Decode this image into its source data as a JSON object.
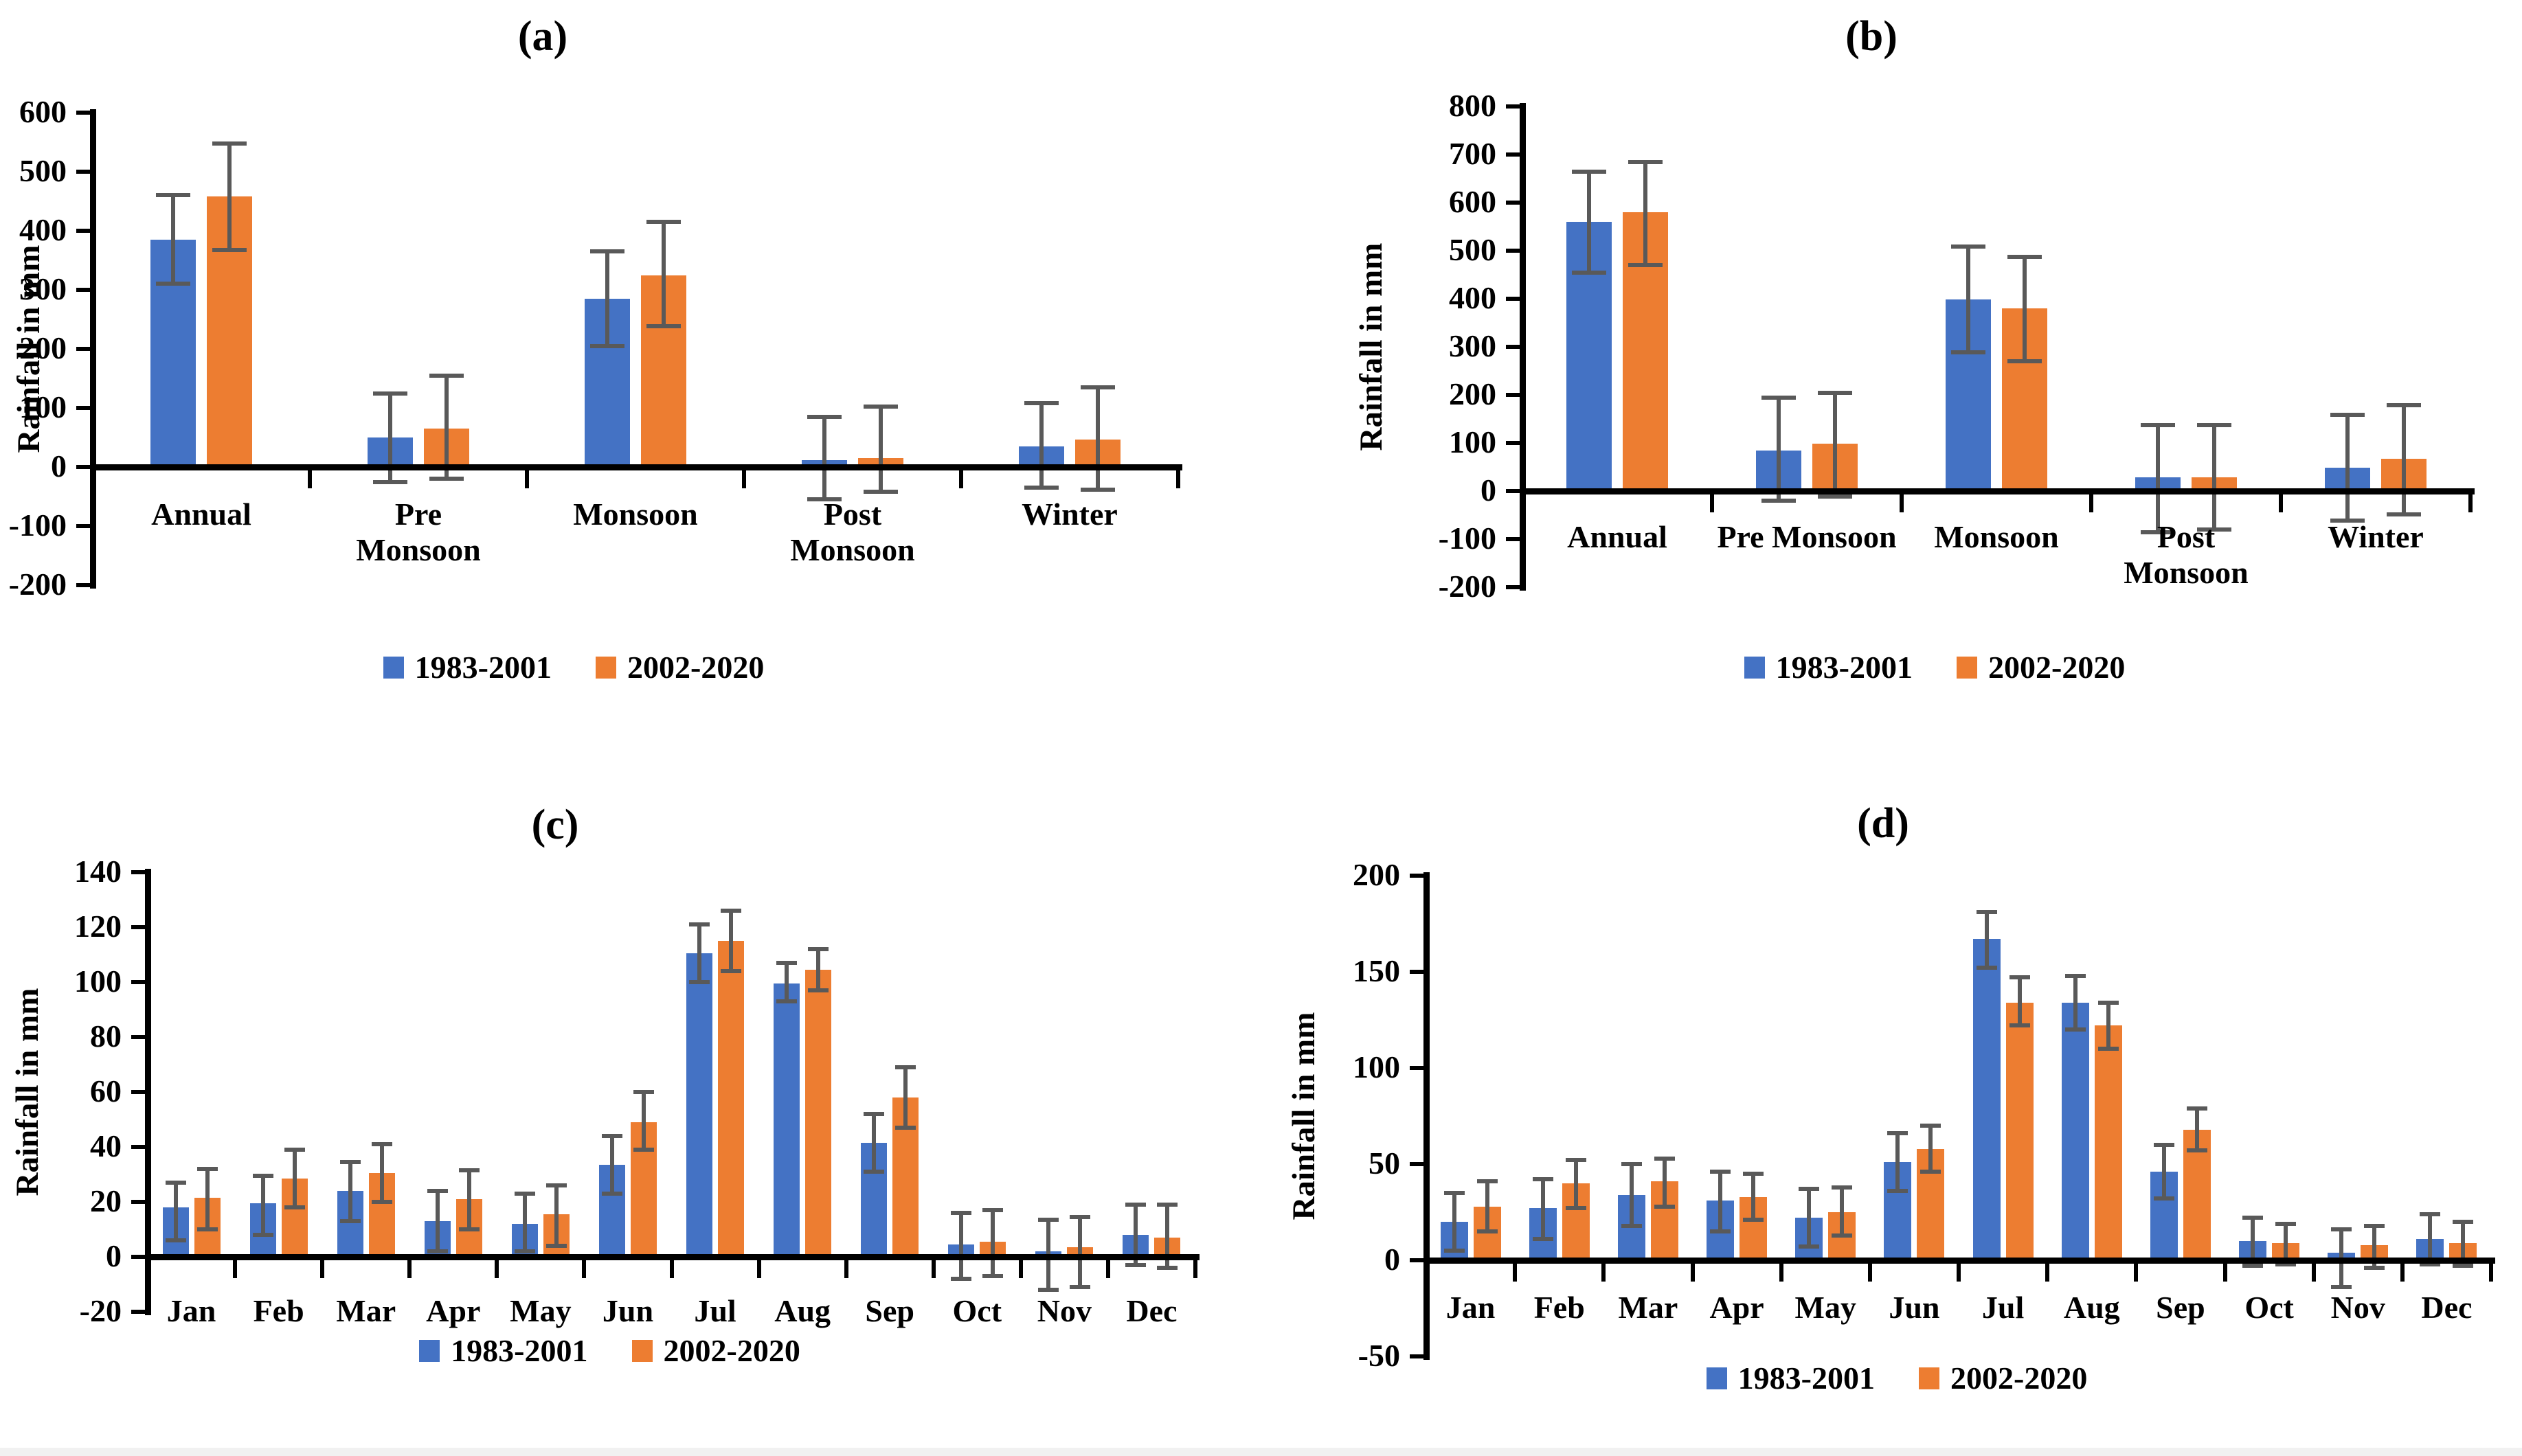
{
  "figure": {
    "description": "Four-panel bar chart figure comparing rainfall of two periods with error bars",
    "legend": {
      "series": [
        {
          "label": "1983-2001",
          "color": "#4472C4"
        },
        {
          "label": "2002-2020",
          "color": "#ED7D31"
        }
      ]
    },
    "error_bar_color": "#595959",
    "axis_color": "#000000"
  },
  "chart_data": [
    {
      "id": "a",
      "type": "bar",
      "title": "(a)",
      "ylabel": "Rainfall in mm",
      "categories": [
        "Annual",
        "Pre\nMonsoon",
        "Monsoon",
        "Post\nMonsoon",
        "Winter"
      ],
      "ylim": [
        -200,
        600
      ],
      "ytick_step": 100,
      "grid": false,
      "legend_position": "bottom",
      "series": [
        {
          "name": "1983-2001",
          "values": [
            385,
            50,
            285,
            12,
            35
          ],
          "err_low": [
            310,
            -25,
            205,
            -55,
            -35
          ],
          "err_high": [
            460,
            125,
            365,
            85,
            108
          ]
        },
        {
          "name": "2002-2020",
          "values": [
            458,
            65,
            325,
            15,
            47
          ],
          "err_low": [
            368,
            -20,
            238,
            -42,
            -38
          ],
          "err_high": [
            548,
            155,
            415,
            102,
            135
          ]
        }
      ]
    },
    {
      "id": "b",
      "type": "bar",
      "title": "(b)",
      "ylabel": "Rainfall in mm",
      "categories": [
        "Annual",
        "Pre Monsoon",
        "Monsoon",
        "Post\nMonsoon",
        "Winter"
      ],
      "ylim": [
        -200,
        800
      ],
      "ytick_step": 100,
      "grid": false,
      "legend_position": "bottom",
      "series": [
        {
          "name": "1983-2001",
          "values": [
            560,
            85,
            398,
            28,
            48
          ],
          "err_low": [
            455,
            -20,
            288,
            -85,
            -62
          ],
          "err_high": [
            665,
            195,
            508,
            137,
            158
          ]
        },
        {
          "name": "2002-2020",
          "values": [
            580,
            98,
            380,
            28,
            67
          ],
          "err_low": [
            470,
            -12,
            270,
            -80,
            -48
          ],
          "err_high": [
            685,
            205,
            487,
            137,
            178
          ]
        }
      ]
    },
    {
      "id": "c",
      "type": "bar",
      "title": "(c)",
      "ylabel": "Rainfall in mm",
      "categories": [
        "Jan",
        "Feb",
        "Mar",
        "Apr",
        "May",
        "Jun",
        "Jul",
        "Aug",
        "Sep",
        "Oct",
        "Nov",
        "Dec"
      ],
      "ylim": [
        -20,
        140
      ],
      "ytick_step": 20,
      "grid": false,
      "legend_position": "bottom",
      "series": [
        {
          "name": "1983-2001",
          "values": [
            18,
            19.5,
            24,
            13,
            12,
            33.5,
            110.5,
            99.5,
            41.5,
            4.5,
            2,
            8
          ],
          "err_low": [
            6,
            8,
            13,
            2,
            2,
            23,
            100,
            93,
            31,
            -8,
            -12,
            -3
          ],
          "err_high": [
            27,
            29.5,
            34.5,
            24,
            23,
            44,
            121,
            107,
            52,
            16,
            13.5,
            19
          ]
        },
        {
          "name": "2002-2020",
          "values": [
            21.5,
            28.5,
            30.5,
            21,
            15.5,
            49,
            115,
            104.5,
            58,
            5.5,
            3.5,
            7
          ],
          "err_low": [
            10,
            18,
            20,
            10,
            4,
            39,
            104,
            97,
            47,
            -7,
            -11,
            -4
          ],
          "err_high": [
            32,
            39,
            41,
            31.5,
            26,
            60,
            126,
            112,
            69,
            17,
            14.5,
            19
          ]
        }
      ]
    },
    {
      "id": "d",
      "type": "bar",
      "title": "(d)",
      "ylabel": "Rainfall in mm",
      "categories": [
        "Jan",
        "Feb",
        "Mar",
        "Apr",
        "May",
        "Jun",
        "Jul",
        "Aug",
        "Sep",
        "Oct",
        "Nov",
        "Dec"
      ],
      "ylim": [
        -50,
        200
      ],
      "ytick_step": 50,
      "grid": false,
      "legend_position": "bottom",
      "series": [
        {
          "name": "1983-2001",
          "values": [
            20,
            27,
            34,
            31,
            22,
            51,
            167,
            134,
            46,
            10,
            4,
            11
          ],
          "err_low": [
            5,
            11,
            18,
            15,
            7,
            36,
            152,
            120,
            32,
            -3,
            -14,
            -2
          ],
          "err_high": [
            35,
            42,
            50,
            46,
            37,
            66,
            181,
            148,
            60,
            22,
            16,
            24
          ]
        },
        {
          "name": "2002-2020",
          "values": [
            28,
            40,
            41,
            33,
            25,
            58,
            134,
            122,
            68,
            9,
            8,
            9
          ],
          "err_low": [
            15,
            27,
            28,
            21,
            13,
            46,
            122,
            110,
            57,
            -2,
            -4,
            -3
          ],
          "err_high": [
            41,
            52,
            53,
            45,
            38,
            70,
            147,
            134,
            79,
            19,
            18,
            20
          ]
        }
      ]
    }
  ]
}
